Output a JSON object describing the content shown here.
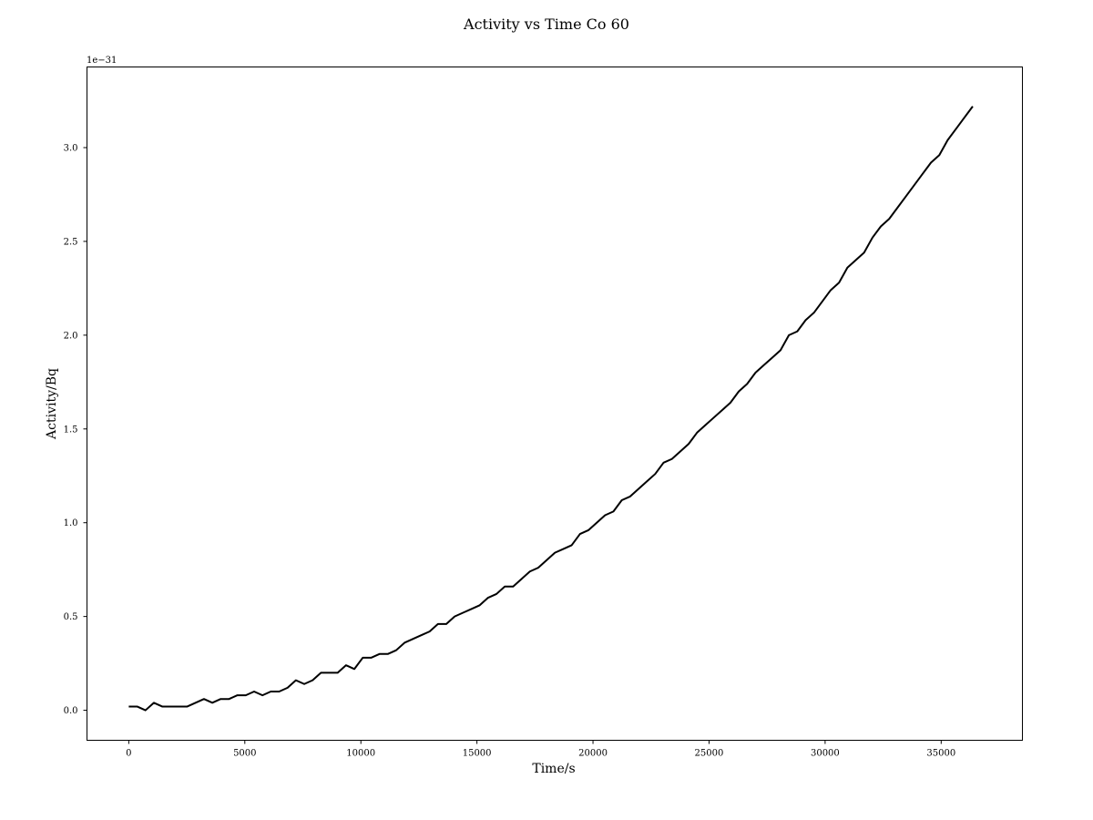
{
  "chart_data": {
    "type": "line",
    "title": "Activity vs Time Co 60",
    "xlabel": "Time/s",
    "ylabel": "Activity/Bq",
    "y_offset_label": "1e−31",
    "xlim": [
      -1800,
      38500
    ],
    "ylim": [
      -0.16,
      3.43
    ],
    "x_ticks": [
      0,
      5000,
      10000,
      15000,
      20000,
      25000,
      30000,
      35000
    ],
    "x_tick_labels": [
      "0",
      "5000",
      "10000",
      "15000",
      "20000",
      "25000",
      "30000",
      "35000"
    ],
    "y_ticks": [
      0.0,
      0.5,
      1.0,
      1.5,
      2.0,
      2.5,
      3.0
    ],
    "y_tick_labels": [
      "0.0",
      "0.5",
      "1.0",
      "1.5",
      "2.0",
      "2.5",
      "3.0"
    ],
    "grid": false,
    "line_color": "#000000",
    "series": [
      {
        "name": "Co 60",
        "x": [
          0,
          360,
          720,
          1080,
          1440,
          1800,
          2160,
          2520,
          2880,
          3240,
          3600,
          3960,
          4320,
          4680,
          5040,
          5400,
          5760,
          6120,
          6480,
          6840,
          7200,
          7560,
          7920,
          8280,
          8640,
          9000,
          9360,
          9720,
          10080,
          10440,
          10800,
          11160,
          11520,
          11880,
          12240,
          12600,
          12960,
          13320,
          13680,
          14040,
          14400,
          14760,
          15120,
          15480,
          15840,
          16200,
          16560,
          16920,
          17280,
          17640,
          18000,
          18360,
          18720,
          19080,
          19440,
          19800,
          20160,
          20520,
          20880,
          21240,
          21600,
          21960,
          22320,
          22680,
          23040,
          23400,
          23760,
          24120,
          24480,
          24840,
          25200,
          25560,
          25920,
          26280,
          26640,
          27000,
          27360,
          27720,
          28080,
          28440,
          28800,
          29160,
          29520,
          29880,
          30240,
          30600,
          30960,
          31320,
          31680,
          32040,
          32400,
          32760,
          33120,
          33480,
          33840,
          34200,
          34560,
          34920,
          35280,
          35640,
          36000,
          36360
        ],
        "values": [
          0.02,
          0.02,
          0.0,
          0.04,
          0.02,
          0.02,
          0.02,
          0.02,
          0.04,
          0.06,
          0.04,
          0.06,
          0.06,
          0.08,
          0.08,
          0.1,
          0.08,
          0.1,
          0.1,
          0.12,
          0.16,
          0.14,
          0.16,
          0.2,
          0.2,
          0.2,
          0.24,
          0.22,
          0.28,
          0.28,
          0.3,
          0.3,
          0.32,
          0.36,
          0.38,
          0.4,
          0.42,
          0.46,
          0.46,
          0.5,
          0.52,
          0.54,
          0.56,
          0.6,
          0.62,
          0.66,
          0.66,
          0.7,
          0.74,
          0.76,
          0.8,
          0.84,
          0.86,
          0.88,
          0.94,
          0.96,
          1.0,
          1.04,
          1.06,
          1.12,
          1.14,
          1.18,
          1.22,
          1.26,
          1.32,
          1.34,
          1.38,
          1.42,
          1.48,
          1.52,
          1.56,
          1.6,
          1.64,
          1.7,
          1.74,
          1.8,
          1.84,
          1.88,
          1.92,
          2.0,
          2.02,
          2.08,
          2.12,
          2.18,
          2.24,
          2.28,
          2.36,
          2.4,
          2.44,
          2.52,
          2.58,
          2.62,
          2.68,
          2.74,
          2.8,
          2.86,
          2.92,
          2.96,
          3.04,
          3.1,
          3.16,
          3.22
        ]
      }
    ]
  }
}
